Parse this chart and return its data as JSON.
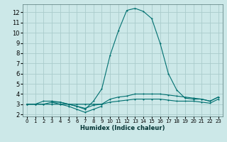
{
  "bg_color": "#cce8e8",
  "grid_color": "#aacccc",
  "line_color": "#007070",
  "xlabel": "Humidex (Indice chaleur)",
  "xlim": [
    -0.5,
    23.5
  ],
  "ylim": [
    1.8,
    12.8
  ],
  "xticks": [
    0,
    1,
    2,
    3,
    4,
    5,
    6,
    7,
    8,
    9,
    10,
    11,
    12,
    13,
    14,
    15,
    16,
    17,
    18,
    19,
    20,
    21,
    22,
    23
  ],
  "yticks": [
    2,
    3,
    4,
    5,
    6,
    7,
    8,
    9,
    10,
    11,
    12
  ],
  "series": [
    {
      "x": [
        0,
        1,
        2,
        3,
        4,
        5,
        6,
        7,
        8,
        9,
        10,
        11,
        12,
        13,
        14,
        15,
        16,
        17,
        18,
        19,
        20,
        21,
        22,
        23
      ],
      "y": [
        3.0,
        3.0,
        3.3,
        3.3,
        3.2,
        3.0,
        2.8,
        2.5,
        3.3,
        4.5,
        7.8,
        10.2,
        12.2,
        12.4,
        12.1,
        11.4,
        9.0,
        6.0,
        4.4,
        3.6,
        3.5,
        3.5,
        3.3,
        3.7
      ]
    },
    {
      "x": [
        0,
        1,
        2,
        3,
        4,
        5,
        6,
        7,
        8,
        9,
        10,
        11,
        12,
        13,
        14,
        15,
        16,
        17,
        18,
        19,
        20,
        21,
        22,
        23
      ],
      "y": [
        3.0,
        3.0,
        3.0,
        3.2,
        3.2,
        3.0,
        2.8,
        2.6,
        2.9,
        3.0,
        3.5,
        3.7,
        3.8,
        4.0,
        4.0,
        4.0,
        4.0,
        3.9,
        3.8,
        3.7,
        3.6,
        3.5,
        3.3,
        3.7
      ]
    },
    {
      "x": [
        0,
        1,
        2,
        3,
        4,
        5,
        6,
        7,
        8,
        9,
        10,
        11,
        12,
        13,
        14,
        15,
        16,
        17,
        18,
        19,
        20,
        21,
        22,
        23
      ],
      "y": [
        3.0,
        3.0,
        3.0,
        3.0,
        3.0,
        3.0,
        3.0,
        3.0,
        3.0,
        3.0,
        3.2,
        3.3,
        3.4,
        3.5,
        3.5,
        3.5,
        3.5,
        3.4,
        3.3,
        3.3,
        3.3,
        3.2,
        3.1,
        3.5
      ]
    },
    {
      "x": [
        3,
        4,
        5,
        6,
        7,
        8,
        9
      ],
      "y": [
        3.2,
        3.0,
        2.8,
        2.5,
        2.2,
        2.5,
        2.8
      ]
    }
  ]
}
